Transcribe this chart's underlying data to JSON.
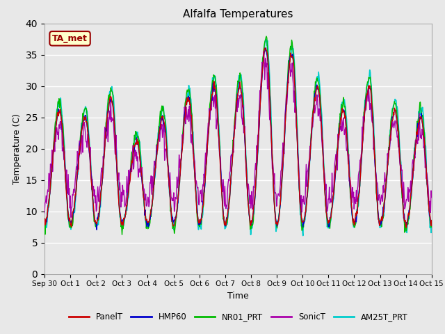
{
  "title": "Alfalfa Temperatures",
  "xlabel": "Time",
  "ylabel": "Temperature (C)",
  "ylim": [
    0,
    40
  ],
  "yticks": [
    0,
    5,
    10,
    15,
    20,
    25,
    30,
    35,
    40
  ],
  "background_color": "#e8e8e8",
  "plot_bg_color": "#e8e8e8",
  "series": {
    "PanelT": {
      "color": "#cc0000",
      "lw": 1.0,
      "zorder": 4
    },
    "HMP60": {
      "color": "#0000cc",
      "lw": 1.0,
      "zorder": 4
    },
    "NR01_PRT": {
      "color": "#00bb00",
      "lw": 1.0,
      "zorder": 3
    },
    "SonicT": {
      "color": "#aa00aa",
      "lw": 1.0,
      "zorder": 3
    },
    "AM25T_PRT": {
      "color": "#00cccc",
      "lw": 1.2,
      "zorder": 2
    }
  },
  "annotation": {
    "text": "TA_met",
    "fontsize": 9,
    "color": "#990000",
    "bgcolor": "#ffffcc",
    "edgecolor": "#990000"
  },
  "n_points": 720,
  "start_day": 0,
  "end_day": 15,
  "base_temp": 10,
  "amplitude": 13,
  "night_min": 8,
  "day_maxes": [
    26,
    25,
    28,
    21,
    25,
    28,
    30,
    30,
    36,
    35,
    30,
    26,
    30,
    26,
    25,
    26
  ],
  "x_tick_labels": [
    "Sep 30",
    "Oct 1",
    "Oct 2",
    "Oct 3",
    "Oct 4",
    "Oct 5",
    "Oct 6",
    "Oct 7",
    "Oct 8",
    "Oct 9",
    "Oct 10",
    "Oct 11",
    "Oct 12",
    "Oct 13",
    "Oct 14",
    "Oct 15"
  ],
  "x_tick_positions": [
    0,
    1,
    2,
    3,
    4,
    5,
    6,
    7,
    8,
    9,
    10,
    11,
    12,
    13,
    14,
    15
  ],
  "grid_color": "#ffffff",
  "grid_lw": 1.0,
  "figsize": [
    6.4,
    4.8
  ],
  "dpi": 100
}
